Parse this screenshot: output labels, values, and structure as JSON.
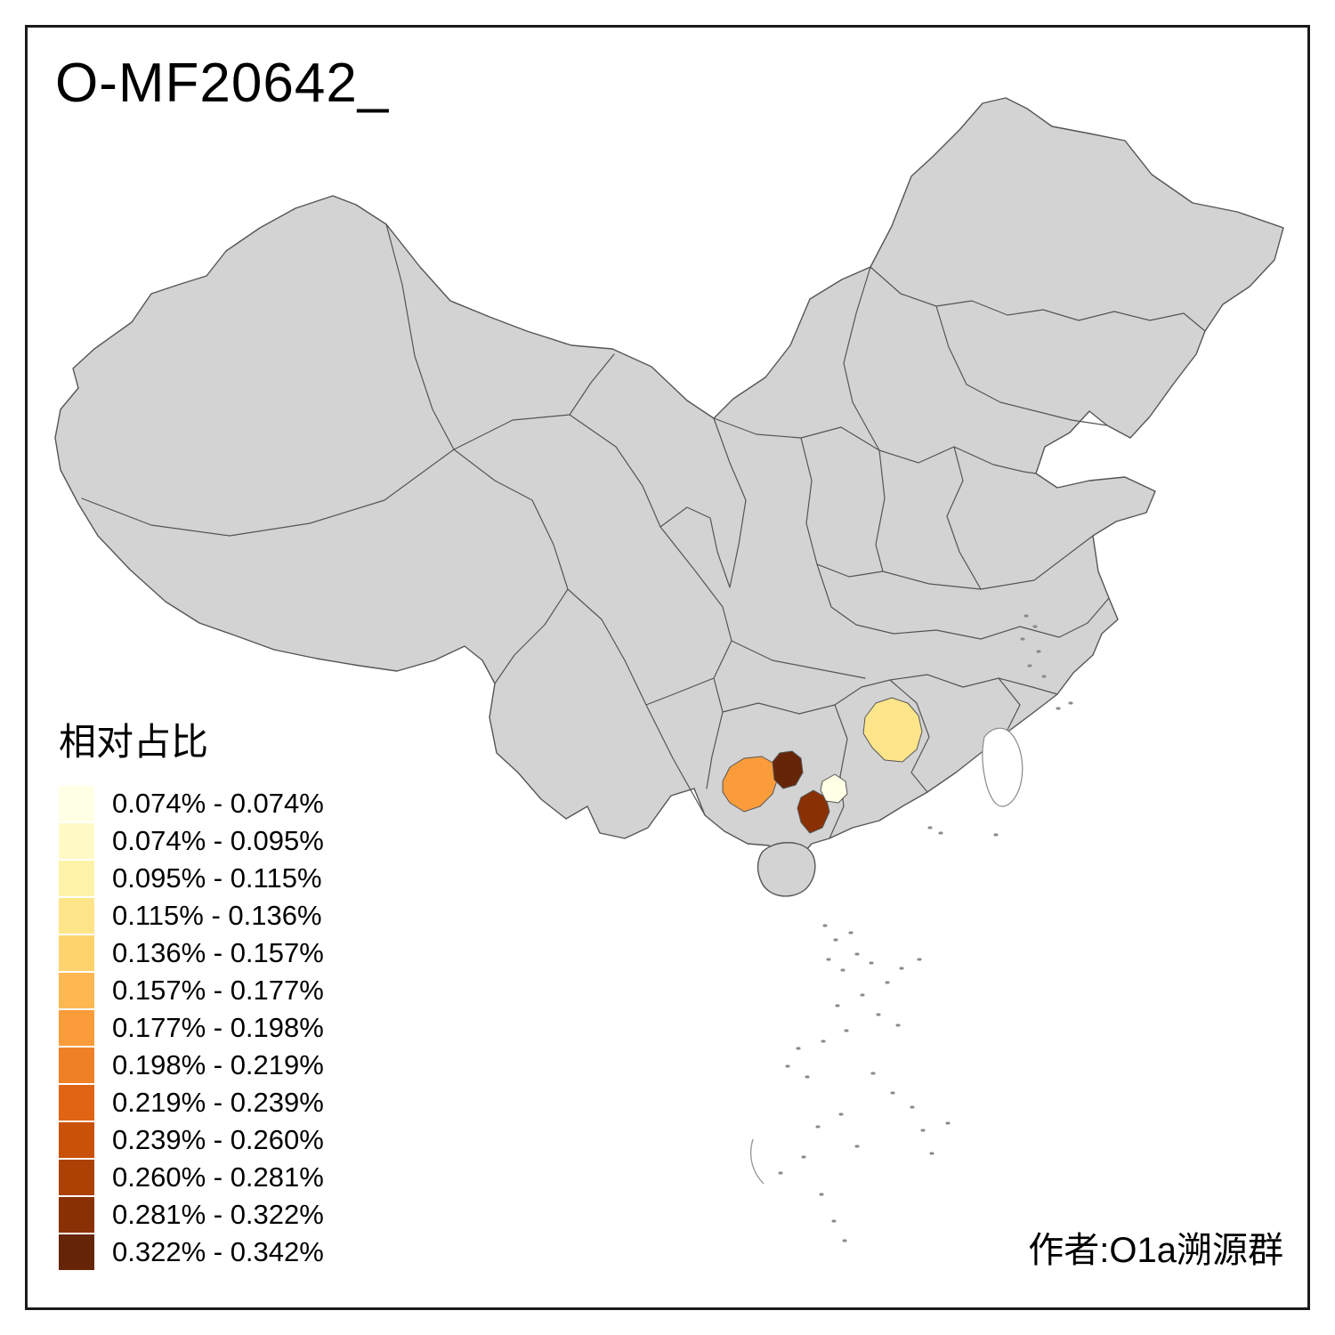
{
  "title": "O-MF20642_",
  "author": "作者:O1a溯源群",
  "legend": {
    "title": "相对占比",
    "entries": [
      {
        "label": "0.074% - 0.074%",
        "color": "#FFFFE5"
      },
      {
        "label": "0.074% - 0.095%",
        "color": "#FFF9C6"
      },
      {
        "label": "0.095% - 0.115%",
        "color": "#FEF3A8"
      },
      {
        "label": "0.115% - 0.136%",
        "color": "#FEE58A"
      },
      {
        "label": "0.136% - 0.157%",
        "color": "#FED36D"
      },
      {
        "label": "0.157% - 0.177%",
        "color": "#FEB852"
      },
      {
        "label": "0.177% - 0.198%",
        "color": "#FB9C3B"
      },
      {
        "label": "0.198% - 0.219%",
        "color": "#F08026"
      },
      {
        "label": "0.219% - 0.239%",
        "color": "#E06414"
      },
      {
        "label": "0.239% - 0.260%",
        "color": "#C95108"
      },
      {
        "label": "0.260% - 0.281%",
        "color": "#AC4104"
      },
      {
        "label": "0.281% - 0.322%",
        "color": "#8A3005"
      },
      {
        "label": "0.322% - 0.342%",
        "color": "#662506"
      }
    ]
  },
  "map": {
    "land_color": "#d3d3d3",
    "border_color": "#555555",
    "highlighted_regions": [
      {
        "name": "west-guangxi",
        "range": "0.177% - 0.198%",
        "color": "#FB9C3B"
      },
      {
        "name": "central-guangxi",
        "range": "0.322% - 0.342%",
        "color": "#662506"
      },
      {
        "name": "west-guangdong",
        "range": "0.281% - 0.322%",
        "color": "#8A3005"
      },
      {
        "name": "central-west-guangdong",
        "range": "0.074% - 0.074%",
        "color": "#FFFFE5"
      },
      {
        "name": "west-fujian",
        "range": "0.115% - 0.136%",
        "color": "#FEE58A"
      }
    ]
  }
}
